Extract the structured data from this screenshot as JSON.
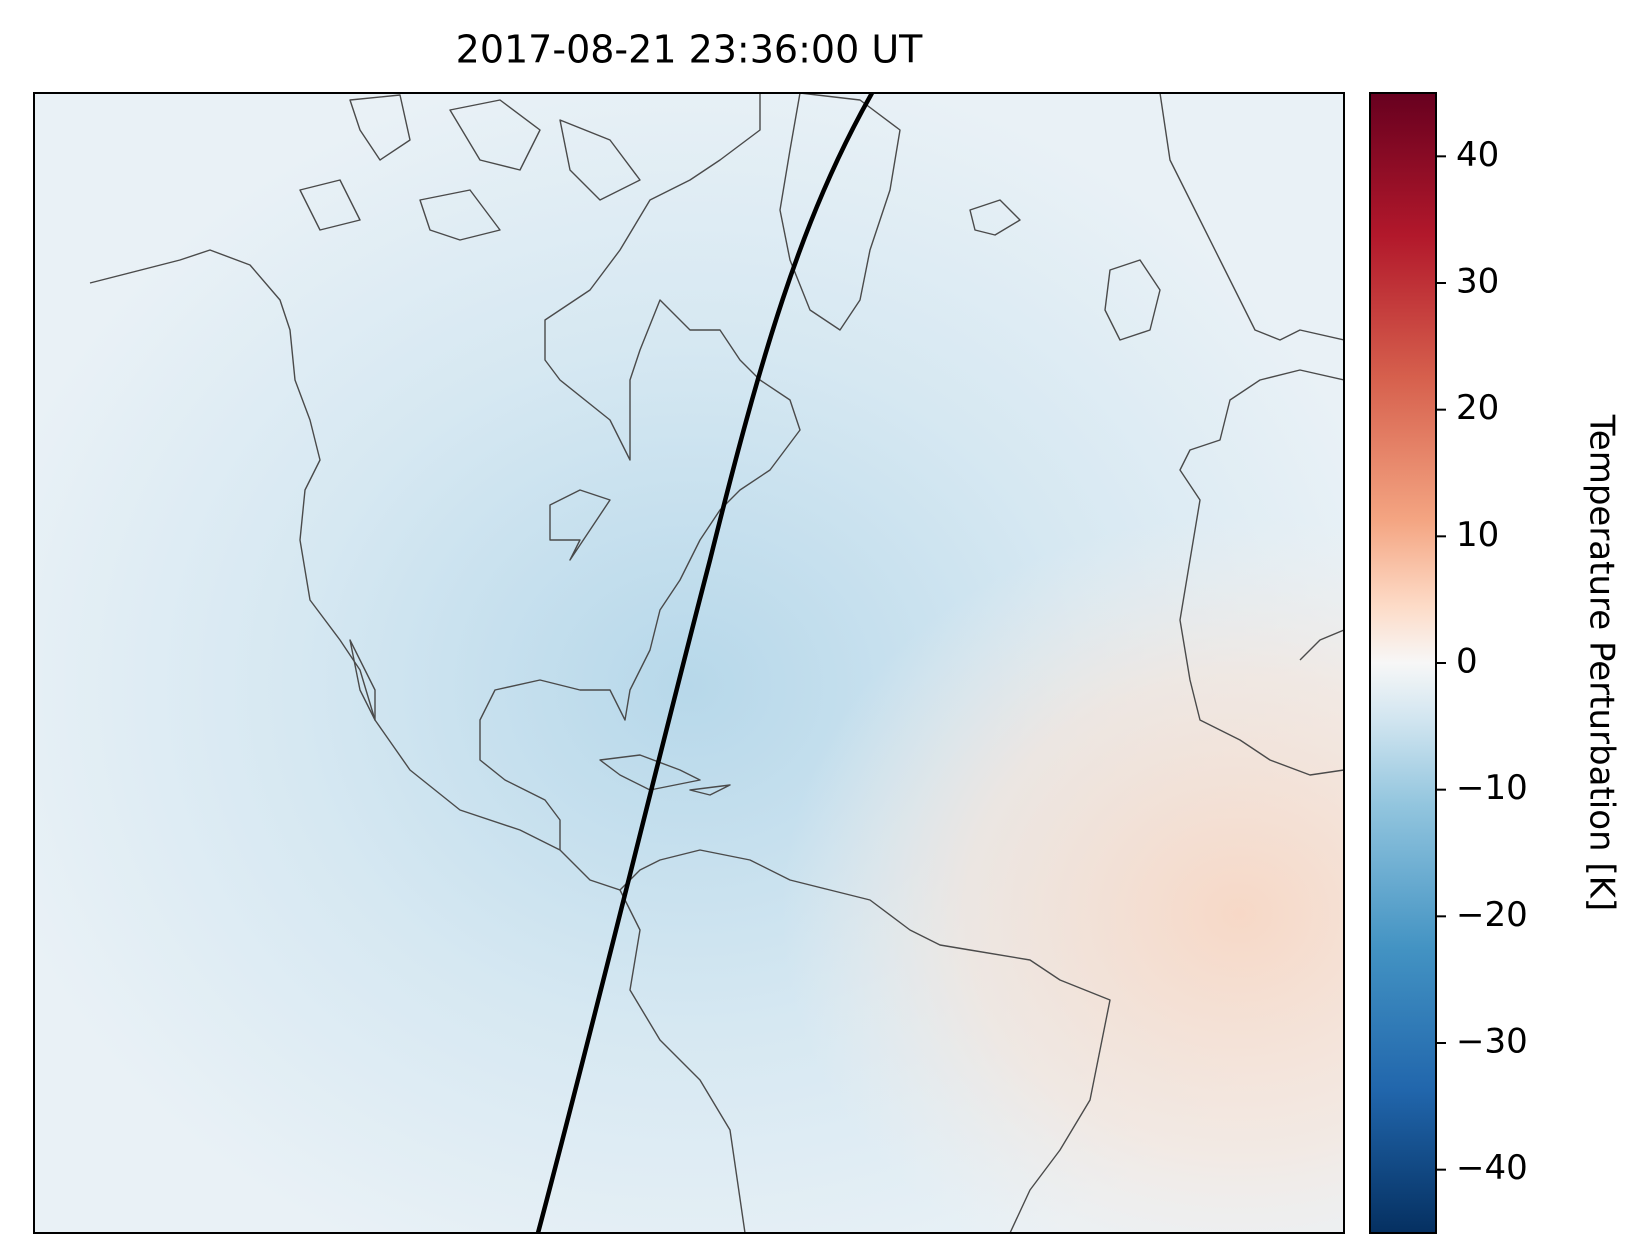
{
  "title": "2017-08-21 23:36:00 UT",
  "colorbar": {
    "label": "Temperature Perturbation [K]",
    "lim": [
      -45,
      45
    ],
    "ticks": [
      {
        "value": -40,
        "label": "−40"
      },
      {
        "value": -30,
        "label": "−30"
      },
      {
        "value": -20,
        "label": "−20"
      },
      {
        "value": -10,
        "label": "−10"
      },
      0,
      10,
      20,
      30,
      40
    ]
  }
}
